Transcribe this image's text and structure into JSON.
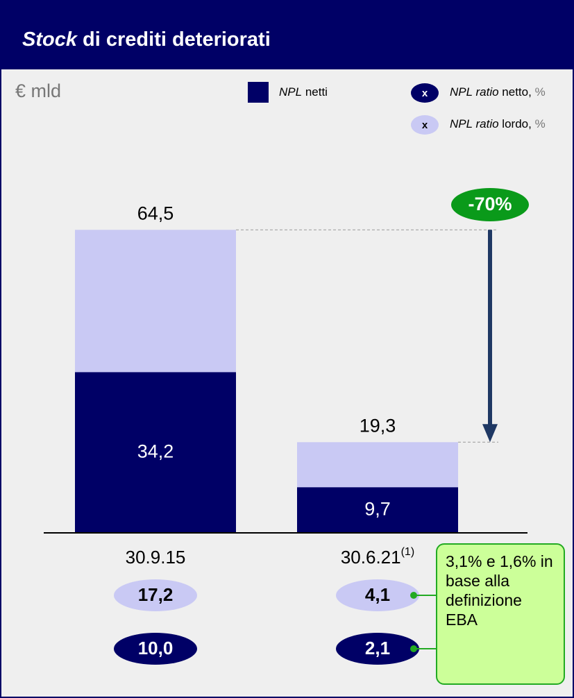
{
  "chart_data": {
    "type": "bar",
    "title_italic": "Stock",
    "title": "di crediti deteriorati",
    "unit_label": "€ mld",
    "categories": [
      "30.9.15",
      "30.6.21"
    ],
    "category_footnotes": [
      null,
      "(1)"
    ],
    "ylim": [
      0,
      70
    ],
    "series": [
      {
        "color": "#c9c9f4",
        "values": [
          64.5,
          19.3
        ],
        "value_labels": [
          "64,5",
          "19,3"
        ]
      },
      {
        "name_italic": "NPL",
        "name": "netti",
        "color": "#000066",
        "values": [
          34.2,
          9.7
        ],
        "value_labels": [
          "34,2",
          "9,7"
        ]
      }
    ],
    "ratios": [
      {
        "name_italic": "NPL ratio",
        "name": "lordo,",
        "name_unit": "%",
        "color": "#c9c9f4",
        "text_color": "#000000",
        "marker": "x",
        "values": [
          17.2,
          4.1
        ],
        "value_labels": [
          "17,2",
          "4,1"
        ]
      },
      {
        "name_italic": "NPL ratio",
        "name": "netto,",
        "name_unit": "%",
        "color": "#000066",
        "text_color": "#ffffff",
        "marker": "x",
        "values": [
          10.0,
          2.1
        ],
        "value_labels": [
          "10,0",
          "2,1"
        ]
      }
    ],
    "change_annotation": "-70%",
    "callout": "3,1% e 1,6% in base alla definizione EBA"
  }
}
